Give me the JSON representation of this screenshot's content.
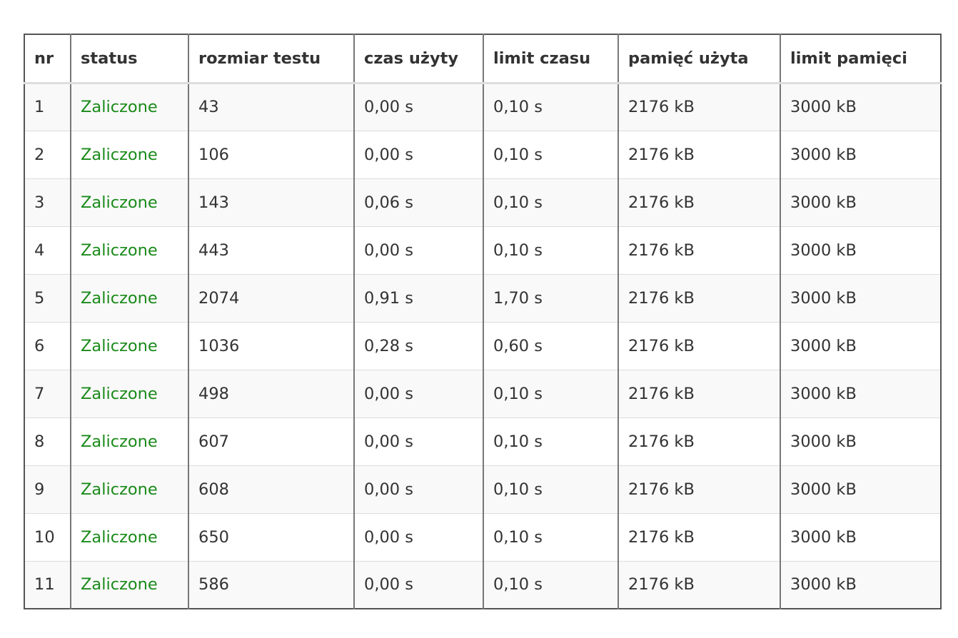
{
  "results_table": {
    "headers": {
      "nr": "nr",
      "status": "status",
      "test_size": "rozmiar testu",
      "time_used": "czas użyty",
      "time_limit": "limit czasu",
      "memory_used": "pamięć użyta",
      "memory_limit": "limit pamięci"
    },
    "colors": {
      "passed_status": "#1a8a1a",
      "text": "#333333",
      "stripe": "#f9f9f9"
    },
    "rows": [
      {
        "nr": "1",
        "status": "Zaliczone",
        "test_size": "43",
        "time_used": "0,00 s",
        "time_limit": "0,10 s",
        "memory_used": "2176 kB",
        "memory_limit": "3000 kB"
      },
      {
        "nr": "2",
        "status": "Zaliczone",
        "test_size": "106",
        "time_used": "0,00 s",
        "time_limit": "0,10 s",
        "memory_used": "2176 kB",
        "memory_limit": "3000 kB"
      },
      {
        "nr": "3",
        "status": "Zaliczone",
        "test_size": "143",
        "time_used": "0,06 s",
        "time_limit": "0,10 s",
        "memory_used": "2176 kB",
        "memory_limit": "3000 kB"
      },
      {
        "nr": "4",
        "status": "Zaliczone",
        "test_size": "443",
        "time_used": "0,00 s",
        "time_limit": "0,10 s",
        "memory_used": "2176 kB",
        "memory_limit": "3000 kB"
      },
      {
        "nr": "5",
        "status": "Zaliczone",
        "test_size": "2074",
        "time_used": "0,91 s",
        "time_limit": "1,70 s",
        "memory_used": "2176 kB",
        "memory_limit": "3000 kB"
      },
      {
        "nr": "6",
        "status": "Zaliczone",
        "test_size": "1036",
        "time_used": "0,28 s",
        "time_limit": "0,60 s",
        "memory_used": "2176 kB",
        "memory_limit": "3000 kB"
      },
      {
        "nr": "7",
        "status": "Zaliczone",
        "test_size": "498",
        "time_used": "0,00 s",
        "time_limit": "0,10 s",
        "memory_used": "2176 kB",
        "memory_limit": "3000 kB"
      },
      {
        "nr": "8",
        "status": "Zaliczone",
        "test_size": "607",
        "time_used": "0,00 s",
        "time_limit": "0,10 s",
        "memory_used": "2176 kB",
        "memory_limit": "3000 kB"
      },
      {
        "nr": "9",
        "status": "Zaliczone",
        "test_size": "608",
        "time_used": "0,00 s",
        "time_limit": "0,10 s",
        "memory_used": "2176 kB",
        "memory_limit": "3000 kB"
      },
      {
        "nr": "10",
        "status": "Zaliczone",
        "test_size": "650",
        "time_used": "0,00 s",
        "time_limit": "0,10 s",
        "memory_used": "2176 kB",
        "memory_limit": "3000 kB"
      },
      {
        "nr": "11",
        "status": "Zaliczone",
        "test_size": "586",
        "time_used": "0,00 s",
        "time_limit": "0,10 s",
        "memory_used": "2176 kB",
        "memory_limit": "3000 kB"
      }
    ]
  }
}
